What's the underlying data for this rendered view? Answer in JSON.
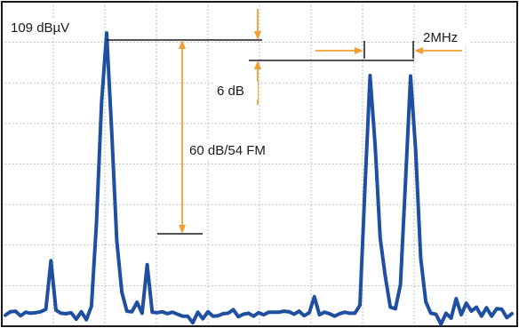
{
  "chart_data": {
    "type": "line",
    "title": "",
    "xlabel": "",
    "ylabel": "",
    "grid": true,
    "colors": {
      "trace": "#1f4fa0",
      "annotation": "#f0a030",
      "marker": "#1a1a1a",
      "grid": "#9a9a9a"
    },
    "series": [
      {
        "x": [
          0,
          1,
          2,
          3,
          4,
          5,
          6,
          7,
          8,
          9,
          10,
          11,
          12,
          13,
          14,
          15,
          16,
          17,
          18,
          19,
          20,
          21,
          22,
          23,
          24,
          25,
          26,
          27,
          28,
          29,
          30,
          31,
          32,
          33,
          34,
          35,
          36,
          37,
          38,
          39,
          40,
          41,
          42,
          43,
          44,
          45,
          46,
          47,
          48,
          49,
          50,
          51,
          52,
          53,
          54,
          55,
          56,
          57,
          58,
          59,
          60,
          61,
          62,
          63,
          64,
          65,
          66,
          67,
          68,
          69,
          70,
          71,
          72,
          73,
          74,
          75,
          76,
          77,
          78,
          79,
          80,
          81,
          82,
          83,
          84,
          85,
          86,
          87,
          88,
          89,
          90,
          91,
          92,
          93,
          94,
          95,
          96,
          97,
          98,
          99,
          100
        ],
        "y": [
          2.2,
          2.9,
          3.0,
          2.1,
          2.8,
          2.6,
          2.7,
          2.9,
          3.4,
          13.1,
          3.2,
          2.6,
          2.5,
          2.7,
          1.4,
          2.9,
          1.3,
          4.0,
          20.8,
          44.7,
          58.6,
          38.9,
          17.1,
          6.8,
          3.0,
          2.9,
          4.8,
          2.6,
          12.3,
          2.8,
          2.7,
          2.9,
          2.5,
          2.8,
          2.4,
          2.0,
          2.0,
          0.7,
          2.8,
          1.5,
          2.9,
          2.0,
          2.1,
          2.5,
          2.6,
          3.3,
          1.9,
          2.4,
          2.6,
          2.0,
          2.7,
          2.3,
          2.8,
          2.8,
          2.8,
          3.0,
          2.9,
          2.4,
          3.0,
          2.1,
          2.7,
          5.9,
          2.3,
          2.8,
          2.5,
          2.0,
          2.5,
          2.8,
          2.6,
          2.6,
          4.2,
          27.8,
          50.1,
          36.2,
          17.6,
          10.0,
          3.8,
          3.5,
          8.3,
          28.9,
          50.0,
          35.2,
          13.6,
          4.9,
          2.6,
          2.4,
          0.4,
          2.6,
          1.6,
          5.5,
          2.3,
          4.6,
          3.0,
          3.8,
          2.0,
          3.7,
          2.0,
          3.5,
          3.4,
          1.7,
          2.5
        ]
      }
    ],
    "annotations": {
      "ref_level": "109 dBµV",
      "delta_fm": "60 dB/54 FM",
      "delta_sig": "6 dB",
      "spacing": "2MHz"
    }
  }
}
